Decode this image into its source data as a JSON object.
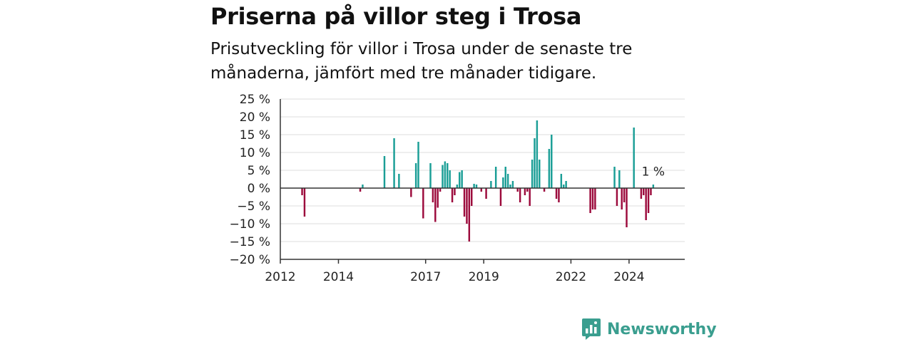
{
  "title": "Priserna på villor steg i Trosa",
  "subtitle": "Prisutveckling för villor i Trosa under de senaste tre månaderna, jämfört med tre månader tidigare.",
  "brand": {
    "name": "Newsworthy"
  },
  "colors": {
    "positive": "#1a9e96",
    "negative": "#9c0a3c",
    "grid": "#dddddd",
    "axis": "#333333",
    "brand": "#3a9e8f"
  },
  "chart_data": {
    "type": "bar",
    "title": "Priserna på villor steg i Trosa",
    "ylim": [
      -20,
      25
    ],
    "yticks": [
      25,
      20,
      15,
      10,
      5,
      0,
      -5,
      -10,
      -15,
      -20
    ],
    "ytick_labels": [
      "25 %",
      "20 %",
      "15 %",
      "10 %",
      "5 %",
      "0 %",
      "−5 %",
      "−10 %",
      "−15 %",
      "−20 %"
    ],
    "xlim": [
      "2012-01",
      "2025-12"
    ],
    "xticks": [
      "2012-01",
      "2014-01",
      "2017-01",
      "2019-01",
      "2022-01",
      "2024-01"
    ],
    "xtick_labels": [
      "2012",
      "2014",
      "2017",
      "2019",
      "2022",
      "2024"
    ],
    "annotation": {
      "x": "2024-11",
      "text": "1 %"
    },
    "unit": "%",
    "points": [
      {
        "x": "2012-10",
        "y": -2
      },
      {
        "x": "2012-11",
        "y": -8
      },
      {
        "x": "2014-10",
        "y": -1
      },
      {
        "x": "2014-11",
        "y": 1
      },
      {
        "x": "2015-08",
        "y": 9
      },
      {
        "x": "2015-12",
        "y": 14
      },
      {
        "x": "2016-02",
        "y": 4
      },
      {
        "x": "2016-07",
        "y": -2.5
      },
      {
        "x": "2016-09",
        "y": 7
      },
      {
        "x": "2016-10",
        "y": 13
      },
      {
        "x": "2016-12",
        "y": -8.5
      },
      {
        "x": "2017-03",
        "y": 7
      },
      {
        "x": "2017-04",
        "y": -4
      },
      {
        "x": "2017-05",
        "y": -9.5
      },
      {
        "x": "2017-06",
        "y": -5.5
      },
      {
        "x": "2017-07",
        "y": -1
      },
      {
        "x": "2017-08",
        "y": 6.5
      },
      {
        "x": "2017-09",
        "y": 7.5
      },
      {
        "x": "2017-10",
        "y": 7
      },
      {
        "x": "2017-11",
        "y": 5
      },
      {
        "x": "2017-12",
        "y": -4
      },
      {
        "x": "2018-01",
        "y": -2
      },
      {
        "x": "2018-02",
        "y": 1
      },
      {
        "x": "2018-03",
        "y": 4.5
      },
      {
        "x": "2018-04",
        "y": 5
      },
      {
        "x": "2018-05",
        "y": -8
      },
      {
        "x": "2018-06",
        "y": -10
      },
      {
        "x": "2018-07",
        "y": -15
      },
      {
        "x": "2018-08",
        "y": -5
      },
      {
        "x": "2018-09",
        "y": 1.2
      },
      {
        "x": "2018-10",
        "y": 1
      },
      {
        "x": "2018-12",
        "y": -1
      },
      {
        "x": "2019-02",
        "y": -3
      },
      {
        "x": "2019-04",
        "y": 2
      },
      {
        "x": "2019-06",
        "y": 6
      },
      {
        "x": "2019-08",
        "y": -5
      },
      {
        "x": "2019-09",
        "y": 3
      },
      {
        "x": "2019-10",
        "y": 6
      },
      {
        "x": "2019-11",
        "y": 4
      },
      {
        "x": "2019-12",
        "y": 1
      },
      {
        "x": "2020-01",
        "y": 2
      },
      {
        "x": "2020-03",
        "y": -1
      },
      {
        "x": "2020-04",
        "y": -4
      },
      {
        "x": "2020-06",
        "y": -2
      },
      {
        "x": "2020-07",
        "y": -1
      },
      {
        "x": "2020-08",
        "y": -5
      },
      {
        "x": "2020-09",
        "y": 8
      },
      {
        "x": "2020-10",
        "y": 14
      },
      {
        "x": "2020-11",
        "y": 19
      },
      {
        "x": "2020-12",
        "y": 8
      },
      {
        "x": "2021-02",
        "y": -1
      },
      {
        "x": "2021-04",
        "y": 11
      },
      {
        "x": "2021-05",
        "y": 15
      },
      {
        "x": "2021-07",
        "y": -3
      },
      {
        "x": "2021-08",
        "y": -4
      },
      {
        "x": "2021-09",
        "y": 4
      },
      {
        "x": "2021-10",
        "y": 1
      },
      {
        "x": "2021-11",
        "y": 2
      },
      {
        "x": "2022-09",
        "y": -7
      },
      {
        "x": "2022-10",
        "y": -6
      },
      {
        "x": "2022-11",
        "y": -6
      },
      {
        "x": "2023-07",
        "y": 6
      },
      {
        "x": "2023-08",
        "y": -5
      },
      {
        "x": "2023-09",
        "y": 5
      },
      {
        "x": "2023-10",
        "y": -6
      },
      {
        "x": "2023-11",
        "y": -4
      },
      {
        "x": "2023-12",
        "y": -11
      },
      {
        "x": "2024-03",
        "y": 17
      },
      {
        "x": "2024-06",
        "y": -3
      },
      {
        "x": "2024-07",
        "y": -2
      },
      {
        "x": "2024-08",
        "y": -9
      },
      {
        "x": "2024-09",
        "y": -7
      },
      {
        "x": "2024-10",
        "y": -2
      },
      {
        "x": "2024-11",
        "y": 1
      }
    ]
  }
}
